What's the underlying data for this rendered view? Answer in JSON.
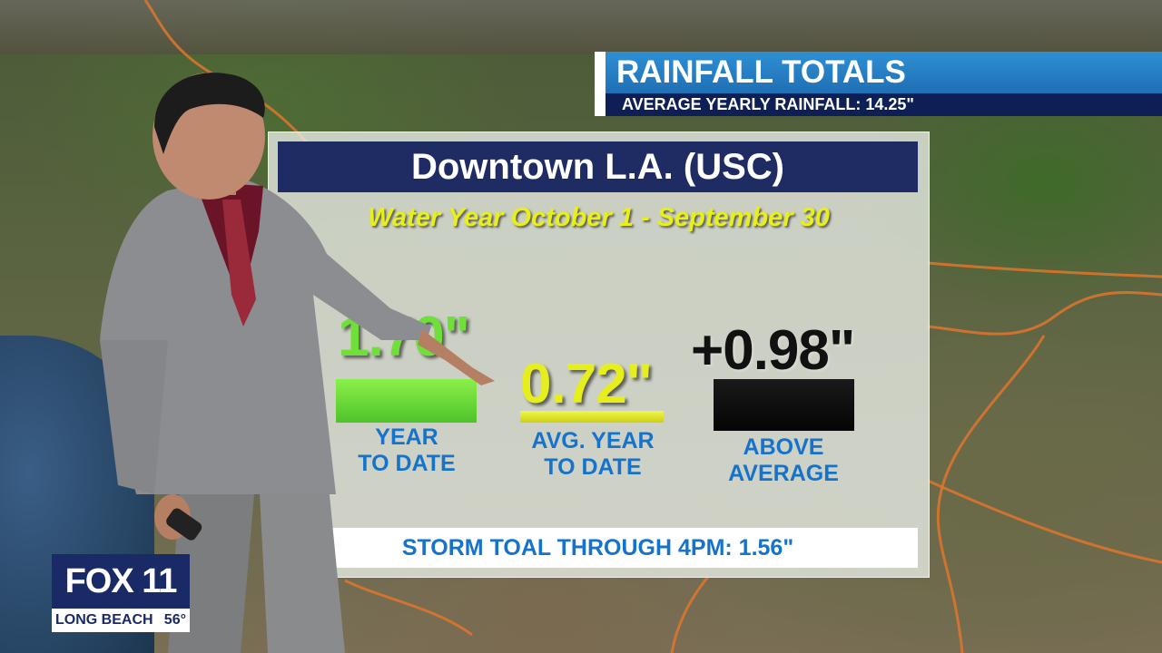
{
  "header": {
    "title": "RAINFALL TOTALS",
    "subtitle": "AVERAGE YEARLY RAINFALL: 14.25\""
  },
  "panel": {
    "location": "Downtown L.A. (USC)",
    "period": "Water Year October 1 - September 30",
    "stats": [
      {
        "value": "1.70\"",
        "label_line1": "YEAR",
        "label_line2": "TO DATE",
        "color": "#6fe03a"
      },
      {
        "value": "0.72\"",
        "label_line1": "AVG. YEAR",
        "label_line2": "TO DATE",
        "color": "#e6ef1d"
      },
      {
        "value": "+0.98\"",
        "label_line1": "ABOVE",
        "label_line2": "AVERAGE",
        "color": "#111111"
      }
    ],
    "storm_total": "STORM TOAL THROUGH 4PM: 1.56\""
  },
  "logo": {
    "brand": "FOX 11",
    "city": "LONG BEACH",
    "temperature": "56°"
  },
  "colors": {
    "title_blue": "#1f6fb4",
    "navy": "#1f2c63",
    "label_blue": "#1673cc",
    "yellow": "#e8ef1a"
  }
}
